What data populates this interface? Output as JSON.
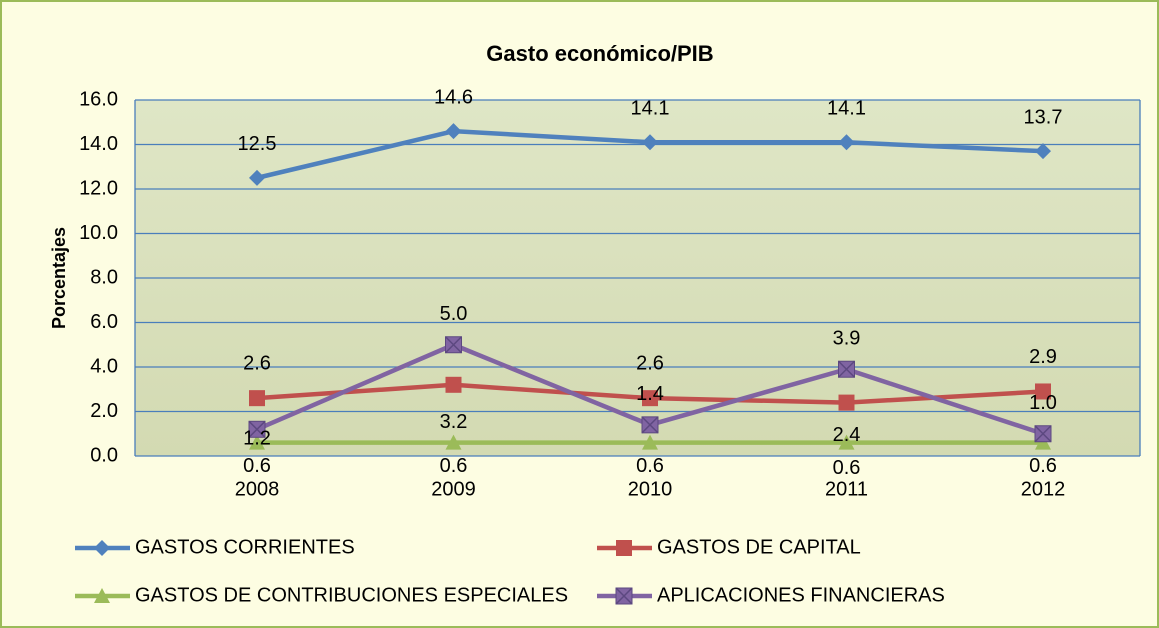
{
  "chart_data": {
    "type": "line",
    "title": "Gasto económico/PIB",
    "y_label": "Porcentajes",
    "categories": [
      "2008",
      "2009",
      "2010",
      "2011",
      "2012"
    ],
    "ylim": [
      0,
      16
    ],
    "yticks": [
      {
        "value": 0,
        "label": "0.0"
      },
      {
        "value": 2,
        "label": "2.0"
      },
      {
        "value": 4,
        "label": "4.0"
      },
      {
        "value": 6,
        "label": "6.0"
      },
      {
        "value": 8,
        "label": "8.0"
      },
      {
        "value": 10,
        "label": "10.0"
      },
      {
        "value": 12,
        "label": "12.0"
      },
      {
        "value": 14,
        "label": "14.0"
      },
      {
        "value": 16,
        "label": "16.0"
      }
    ],
    "grid": true,
    "legend": "bottom",
    "series": [
      {
        "name": "GASTOS CORRIENTES",
        "color": "#4f81bd",
        "marker": "diamond",
        "values": [
          12.5,
          14.6,
          14.1,
          14.1,
          13.7
        ],
        "value_labels": [
          "12.5",
          "14.6",
          "14.1",
          "14.1",
          "13.7"
        ]
      },
      {
        "name": "GASTOS DE CAPITAL",
        "color": "#c0504d",
        "marker": "square",
        "values": [
          2.6,
          3.2,
          2.6,
          2.4,
          2.9
        ],
        "value_labels": [
          "2.6",
          "3.2",
          "2.6",
          "2.4",
          "2.9"
        ]
      },
      {
        "name": "GASTOS DE CONTRIBUCIONES ESPECIALES",
        "color": "#9bbb59",
        "marker": "triangle",
        "values": [
          0.6,
          0.6,
          0.6,
          0.6,
          0.6
        ],
        "value_labels": [
          "0.6",
          "0.6",
          "0.6",
          "0.6",
          "0.6"
        ]
      },
      {
        "name": "APLICACIONES FINANCIERAS",
        "color": "#8064a2",
        "marker": "xsquare",
        "values": [
          1.2,
          5.0,
          1.4,
          3.9,
          1.0
        ],
        "value_labels": [
          "1.2",
          "5.0",
          "1.4",
          "3.9",
          "1.0"
        ]
      }
    ]
  }
}
